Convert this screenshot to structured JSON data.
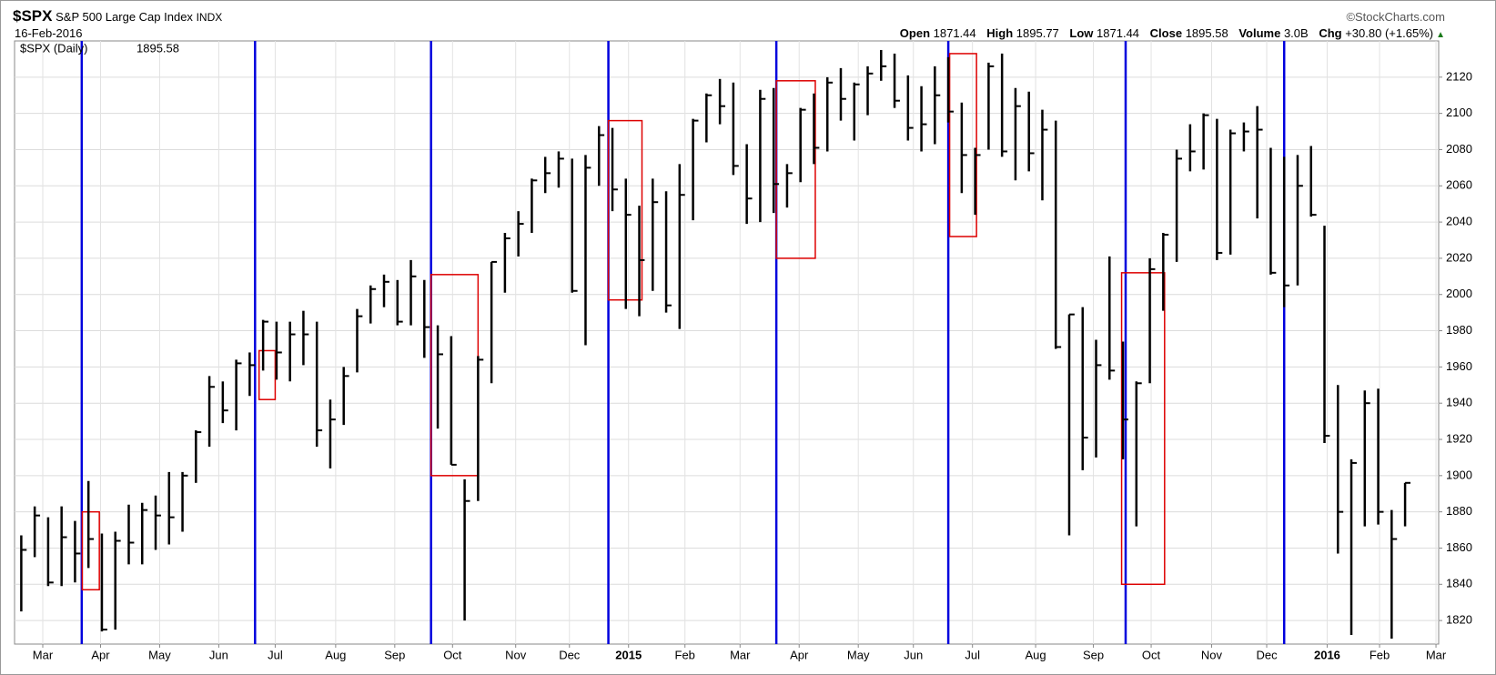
{
  "chart_data": {
    "type": "ohlc",
    "symbol": "$SPX",
    "title": "S&P 500 Large Cap Index",
    "exchange": "INDX",
    "date": "16-Feb-2016",
    "source": "©StockCharts.com",
    "stats": [
      {
        "name": "Open",
        "value": 1871.44
      },
      {
        "name": "High",
        "value": 1895.77
      },
      {
        "name": "Low",
        "value": 1871.44
      },
      {
        "name": "Close",
        "value": 1895.58
      },
      {
        "name": "Volume",
        "value": {
          "value": 3000000000,
          "label": "3.0B"
        }
      },
      {
        "name": "Chg",
        "value": {
          "value": 30.8,
          "label": "+30.80"
        },
        "percent": {
          "value": 1.65,
          "label": "(+1.65%)"
        }
      }
    ],
    "legend": {
      "label": "$SPX (Daily)",
      "value": 1895.58
    },
    "color": "#000000",
    "grid": true,
    "categories": [
      null,
      null,
      null,
      null,
      null,
      null,
      null,
      null,
      null,
      null,
      null,
      null,
      null,
      null,
      null,
      null,
      null,
      null,
      null,
      null,
      null,
      null,
      null,
      null,
      null,
      null,
      null,
      null,
      null,
      null,
      null,
      null,
      null,
      null,
      null,
      null,
      null,
      null,
      null,
      null,
      null,
      null,
      null,
      null,
      null,
      null,
      null,
      null,
      null,
      null,
      null,
      null,
      null,
      null,
      null,
      null,
      null,
      null,
      null,
      null,
      null,
      null,
      null,
      null,
      null,
      null,
      null,
      null,
      null,
      null,
      null,
      null,
      null,
      null,
      null,
      null,
      null,
      null,
      null,
      null,
      null,
      null,
      null,
      null,
      null,
      null,
      null,
      null,
      null,
      null,
      null,
      null,
      null,
      null,
      null,
      null,
      null,
      null,
      null,
      null,
      null,
      null,
      null,
      null
    ],
    "high": [
      1867,
      1883,
      1877,
      1883,
      1875,
      1897,
      1868,
      1869,
      1884,
      1885,
      1889,
      1902,
      1902,
      1925,
      1955,
      1952,
      1964,
      1968,
      1986,
      1985,
      1985,
      1991,
      1985,
      1942,
      1960,
      1992,
      2005,
      2011,
      2008,
      2019,
      2008,
      1983,
      1977,
      1898,
      1966,
      2018,
      2034,
      2046,
      2064,
      2076,
      2079,
      2075,
      2077,
      2093,
      2092,
      2064,
      2049,
      2064,
      2057,
      2072,
      2097,
      2111,
      2119,
      2117,
      2083,
      2113,
      2114,
      2072,
      2103,
      2111,
      2120,
      2125,
      2117,
      2126,
      2135,
      2133,
      2121,
      2115,
      2126,
      2131,
      2106,
      2081,
      2128,
      2133,
      2114,
      2112,
      2102,
      2096,
      1989,
      1993,
      1975,
      2021,
      1974,
      1952,
      2020,
      2034,
      2080,
      2094,
      2100,
      2097,
      2091,
      2095,
      2104,
      2081,
      2076,
      2077,
      2082,
      2038,
      1950,
      1909,
      1947,
      1948,
      1881,
      1896
    ],
    "low": [
      1825,
      1855,
      1839,
      1839,
      1841,
      1849,
      1814,
      1815,
      1851,
      1851,
      1859,
      1862,
      1869,
      1896,
      1916,
      1929,
      1925,
      1944,
      1958,
      1953,
      1952,
      1961,
      1916,
      1904,
      1928,
      1957,
      1984,
      1993,
      1983,
      1983,
      1965,
      1926,
      1906,
      1820,
      1886,
      1951,
      2001,
      2021,
      2034,
      2056,
      2059,
      2001,
      1972,
      2060,
      2046,
      1992,
      1988,
      2002,
      1990,
      1981,
      2041,
      2084,
      2094,
      2066,
      2039,
      2040,
      2045,
      2048,
      2062,
      2072,
      2079,
      2096,
      2085,
      2099,
      2118,
      2103,
      2085,
      2079,
      2083,
      2095,
      2056,
      2044,
      2080,
      2076,
      2063,
      2068,
      2052,
      1970,
      1867,
      1903,
      1910,
      1953,
      1909,
      1872,
      1951,
      1991,
      2018,
      2068,
      2069,
      2019,
      2022,
      2079,
      2042,
      2011,
      1993,
      2005,
      2043,
      1918,
      1857,
      1812,
      1872,
      1873,
      1810,
      1872
    ],
    "close": [
      1859,
      1878,
      1841,
      1866,
      1857,
      1865,
      1815,
      1864,
      1863,
      1881,
      1878,
      1877,
      1900,
      1924,
      1949,
      1936,
      1962,
      1961,
      1985,
      1968,
      1978,
      1978,
      1925,
      1931,
      1955,
      1988,
      2003,
      2007,
      1985,
      2010,
      1982,
      1967,
      1906,
      1886,
      1964,
      2018,
      2031,
      2039,
      2063,
      2067,
      2075,
      2002,
      2070,
      2088,
      2058,
      2044,
      2019,
      2051,
      1994,
      2055,
      2096,
      2110,
      2104,
      2071,
      2053,
      2108,
      2061,
      2067,
      2102,
      2081,
      2117,
      2108,
      2116,
      2122,
      2126,
      2107,
      2092,
      2094,
      2110,
      2101,
      2077,
      2077,
      2126,
      2079,
      2104,
      2078,
      2091,
      1971,
      1989,
      1921,
      1961,
      1958,
      1931,
      1951,
      2014,
      2033,
      2075,
      2079,
      2099,
      2023,
      2089,
      2090,
      2091,
      2012,
      2005,
      2060,
      2044,
      1922,
      1880,
      1907,
      1940,
      1880,
      1865,
      1896
    ],
    "ylim": [
      1807,
      2140
    ],
    "yticks": [
      1820,
      1840,
      1860,
      1880,
      1900,
      1920,
      1940,
      1960,
      1980,
      2000,
      2020,
      2040,
      2060,
      2080,
      2100,
      2120
    ],
    "xticks": [
      {
        "value": 1.6,
        "label": "Mar"
      },
      {
        "value": 5.9,
        "label": "Apr"
      },
      {
        "value": 10.3,
        "label": "May"
      },
      {
        "value": 14.7,
        "label": "Jun"
      },
      {
        "value": 18.9,
        "label": "Jul"
      },
      {
        "value": 23.4,
        "label": "Aug"
      },
      {
        "value": 27.8,
        "label": "Sep"
      },
      {
        "value": 32.1,
        "label": "Oct"
      },
      {
        "value": 36.8,
        "label": "Nov"
      },
      {
        "value": 40.8,
        "label": "Dec"
      },
      {
        "value": 45.2,
        "label": "2015"
      },
      {
        "value": 49.4,
        "label": "Feb"
      },
      {
        "value": 53.5,
        "label": "Mar"
      },
      {
        "value": 57.9,
        "label": "Apr"
      },
      {
        "value": 62.3,
        "label": "May"
      },
      {
        "value": 66.4,
        "label": "Jun"
      },
      {
        "value": 70.8,
        "label": "Jul"
      },
      {
        "value": 75.5,
        "label": "Aug"
      },
      {
        "value": 79.8,
        "label": "Sep"
      },
      {
        "value": 84.1,
        "label": "Oct"
      },
      {
        "value": 88.6,
        "label": "Nov"
      },
      {
        "value": 92.7,
        "label": "Dec"
      },
      {
        "value": 97.2,
        "label": "2016"
      },
      {
        "value": 101.1,
        "label": "Feb"
      },
      {
        "value": 105.3,
        "label": "Mar"
      }
    ],
    "vlines": {
      "color": "#0000dd",
      "values": [
        4.5,
        17.4,
        30.5,
        43.7,
        56.2,
        69.0,
        82.2,
        94.0
      ]
    },
    "boxes": {
      "color": "#dd0000",
      "items": [
        {
          "x": [
            4.54,
            5.81
          ],
          "y": [
            1837,
            1880
          ]
        },
        {
          "x": [
            17.7,
            18.9
          ],
          "y": [
            1942,
            1969
          ]
        },
        {
          "x": [
            30.5,
            34.0
          ],
          "y": [
            1900,
            2011
          ]
        },
        {
          "x": [
            43.7,
            46.2
          ],
          "y": [
            1997,
            2096
          ]
        },
        {
          "x": [
            56.2,
            59.1
          ],
          "y": [
            2020,
            2118
          ]
        },
        {
          "x": [
            69.1,
            71.1
          ],
          "y": [
            2032,
            2133
          ]
        },
        {
          "x": [
            81.9,
            85.1
          ],
          "y": [
            1840,
            2012
          ]
        }
      ]
    }
  }
}
